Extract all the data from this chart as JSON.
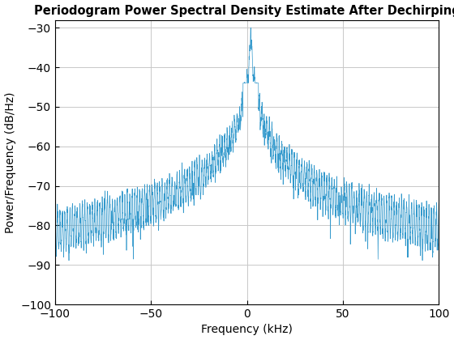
{
  "title": "Periodogram Power Spectral Density Estimate After Dechirping",
  "xlabel": "Frequency (kHz)",
  "ylabel": "Power/Frequency (dB/Hz)",
  "xlim": [
    -100,
    100
  ],
  "ylim": [
    -100,
    -28
  ],
  "yticks": [
    -100,
    -90,
    -80,
    -70,
    -60,
    -50,
    -40,
    -30
  ],
  "xticks": [
    -100,
    -50,
    0,
    50,
    100
  ],
  "line_color": "#3399cc",
  "line_width": 0.5,
  "background_color": "#ffffff",
  "grid_color": "#c8c8c8",
  "title_fontsize": 10.5,
  "label_fontsize": 10,
  "tick_fontsize": 10,
  "noise_floor": -79,
  "peak_freq_khz": 2.0,
  "peak_power": -30,
  "fs_khz": 200,
  "num_points": 3000
}
